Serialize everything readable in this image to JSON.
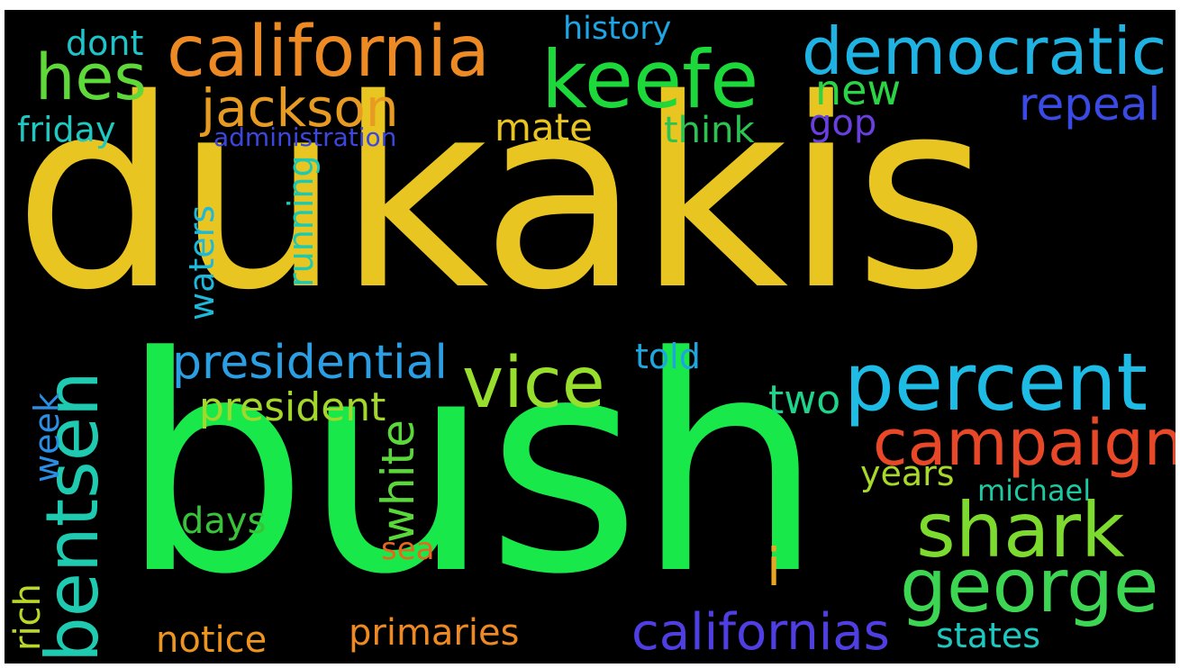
{
  "words": {
    "dukakis": {
      "text": "dukakis",
      "color": "#E8C520"
    },
    "bush": {
      "text": "bush",
      "color": "#19E84A"
    },
    "california": {
      "text": "california",
      "color": "#EE8A24"
    },
    "keefe": {
      "text": "keefe",
      "color": "#1DD83A"
    },
    "democratic": {
      "text": "democratic",
      "color": "#1EB3E3"
    },
    "hes": {
      "text": "hes",
      "color": "#5FD83A"
    },
    "dont": {
      "text": "dont",
      "color": "#1FC3C8"
    },
    "history": {
      "text": "history",
      "color": "#1EA5E3"
    },
    "new": {
      "text": "new",
      "color": "#2BD445"
    },
    "jackson": {
      "text": "jackson",
      "color": "#E89B22"
    },
    "repeal": {
      "text": "repeal",
      "color": "#3A4BE5"
    },
    "friday": {
      "text": "friday",
      "color": "#1EC9C1"
    },
    "mate": {
      "text": "mate",
      "color": "#E8C520"
    },
    "think": {
      "text": "think",
      "color": "#2BC452"
    },
    "gop": {
      "text": "gop",
      "color": "#6A3FE0"
    },
    "administration": {
      "text": "administration",
      "color": "#3B47DE"
    },
    "waters": {
      "text": "waters",
      "color": "#1EB8D8"
    },
    "running": {
      "text": "running",
      "color": "#1EC9B1"
    },
    "presidential": {
      "text": "presidential",
      "color": "#2A9FE4"
    },
    "vice": {
      "text": "vice",
      "color": "#97DF2C"
    },
    "told": {
      "text": "told",
      "color": "#1EA7DE"
    },
    "percent": {
      "text": "percent",
      "color": "#1EBBE5"
    },
    "bentsen": {
      "text": "bentsen",
      "color": "#1ECBB0"
    },
    "week": {
      "text": "week",
      "color": "#2A8FE4"
    },
    "president": {
      "text": "president",
      "color": "#A3D82A"
    },
    "white": {
      "text": "white",
      "color": "#5AD83A"
    },
    "two": {
      "text": "two",
      "color": "#1ED38A"
    },
    "campaign": {
      "text": "campaign",
      "color": "#E84828"
    },
    "years": {
      "text": "years",
      "color": "#A8D82A"
    },
    "michael": {
      "text": "michael",
      "color": "#1EC8A0"
    },
    "shark": {
      "text": "shark",
      "color": "#7DDA2E"
    },
    "days": {
      "text": "days",
      "color": "#38C43A"
    },
    "sea": {
      "text": "sea",
      "color": "#E8661E"
    },
    "i": {
      "text": "i",
      "color": "#E8A624"
    },
    "george": {
      "text": "george",
      "color": "#3DD653"
    },
    "rich": {
      "text": "rich",
      "color": "#B8D82A"
    },
    "notice": {
      "text": "notice",
      "color": "#EE9420"
    },
    "primaries": {
      "text": "primaries",
      "color": "#EE8A24"
    },
    "californias": {
      "text": "californias",
      "color": "#4F3FE2"
    },
    "states": {
      "text": "states",
      "color": "#1EC8C0"
    }
  }
}
